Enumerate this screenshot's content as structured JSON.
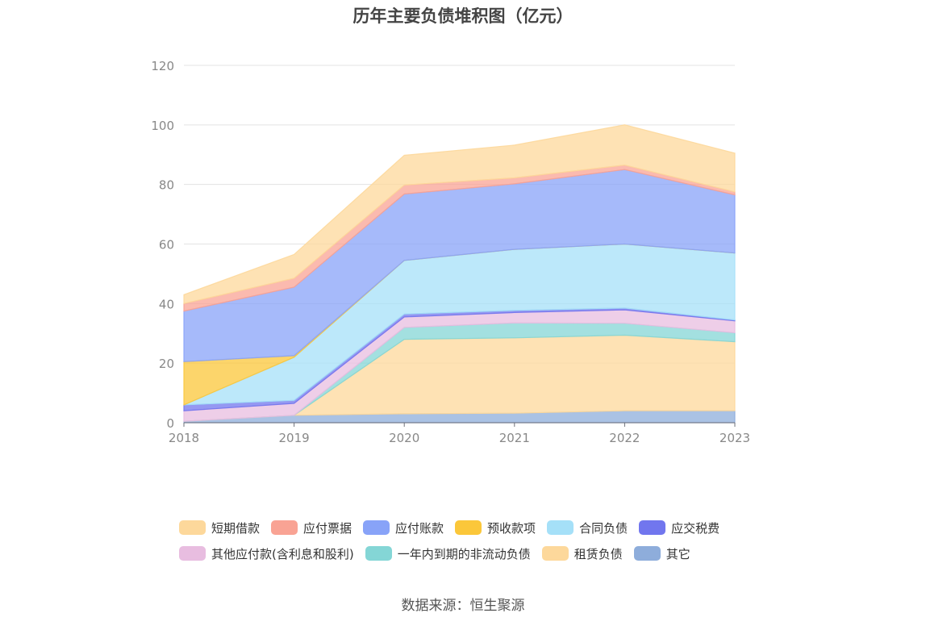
{
  "chart_data": {
    "type": "area",
    "stacked": true,
    "title": "历年主要负债堆积图（亿元）",
    "x": [
      "2018",
      "2019",
      "2020",
      "2021",
      "2022",
      "2023"
    ],
    "ylim": [
      0,
      120
    ],
    "yticks": [
      0,
      20,
      40,
      60,
      80,
      100,
      120
    ],
    "grid": true,
    "legend_position": "bottom",
    "series_stack_order": [
      "其它",
      "租赁负债",
      "一年内到期的非流动负债",
      "其他应付款(含利息和股利)",
      "应交税费",
      "合同负债",
      "预收款项",
      "应付账款",
      "应付票据",
      "短期借款"
    ],
    "series": [
      {
        "name": "短期借款",
        "color": "#fdd89b",
        "values": [
          3.0,
          8.0,
          10.0,
          11.0,
          13.5,
          13.0
        ]
      },
      {
        "name": "应付票据",
        "color": "#f9a394",
        "values": [
          2.5,
          3.0,
          3.0,
          2.0,
          1.5,
          1.0
        ]
      },
      {
        "name": "应付账款",
        "color": "#88a3f8",
        "values": [
          17.0,
          23.0,
          22.3,
          22.0,
          25.0,
          19.5
        ]
      },
      {
        "name": "预收款项",
        "color": "#fbc73a",
        "values": [
          14.5,
          0.5,
          0,
          0,
          0,
          0
        ]
      },
      {
        "name": "合同负债",
        "color": "#a5e0f8",
        "values": [
          0,
          14.5,
          18.0,
          20.5,
          21.5,
          22.5
        ]
      },
      {
        "name": "应交税费",
        "color": "#7176ee",
        "values": [
          2.0,
          1.0,
          1.0,
          0.7,
          0.6,
          0.3
        ]
      },
      {
        "name": "其他应付款(含利息和股利)",
        "color": "#e8bde0",
        "values": [
          3.5,
          4.0,
          3.5,
          3.5,
          4.5,
          4.0
        ]
      },
      {
        "name": "一年内到期的非流动负债",
        "color": "#84d6d6",
        "values": [
          0,
          0,
          4.0,
          5.0,
          4.0,
          3.0
        ]
      },
      {
        "name": "租赁负债",
        "color": "#fdd89b",
        "values": [
          0,
          0,
          25.0,
          25.3,
          25.4,
          23.2
        ]
      },
      {
        "name": "其它",
        "color": "#8eaddb",
        "values": [
          0.5,
          2.5,
          3.0,
          3.2,
          4.0,
          4.0
        ]
      }
    ]
  },
  "legend": {
    "items": [
      {
        "label": "短期借款",
        "color": "#fdd89b"
      },
      {
        "label": "应付票据",
        "color": "#f9a394"
      },
      {
        "label": "应付账款",
        "color": "#88a3f8"
      },
      {
        "label": "预收款项",
        "color": "#fbc73a"
      },
      {
        "label": "合同负债",
        "color": "#a5e0f8"
      },
      {
        "label": "应交税费",
        "color": "#7176ee"
      },
      {
        "label": "其他应付款(含利息和股利)",
        "color": "#e8bde0"
      },
      {
        "label": "一年内到期的非流动负债",
        "color": "#84d6d6"
      },
      {
        "label": "租赁负债",
        "color": "#fdd89b"
      },
      {
        "label": "其它",
        "color": "#8eaddb"
      }
    ]
  },
  "source": "数据来源：恒生聚源"
}
